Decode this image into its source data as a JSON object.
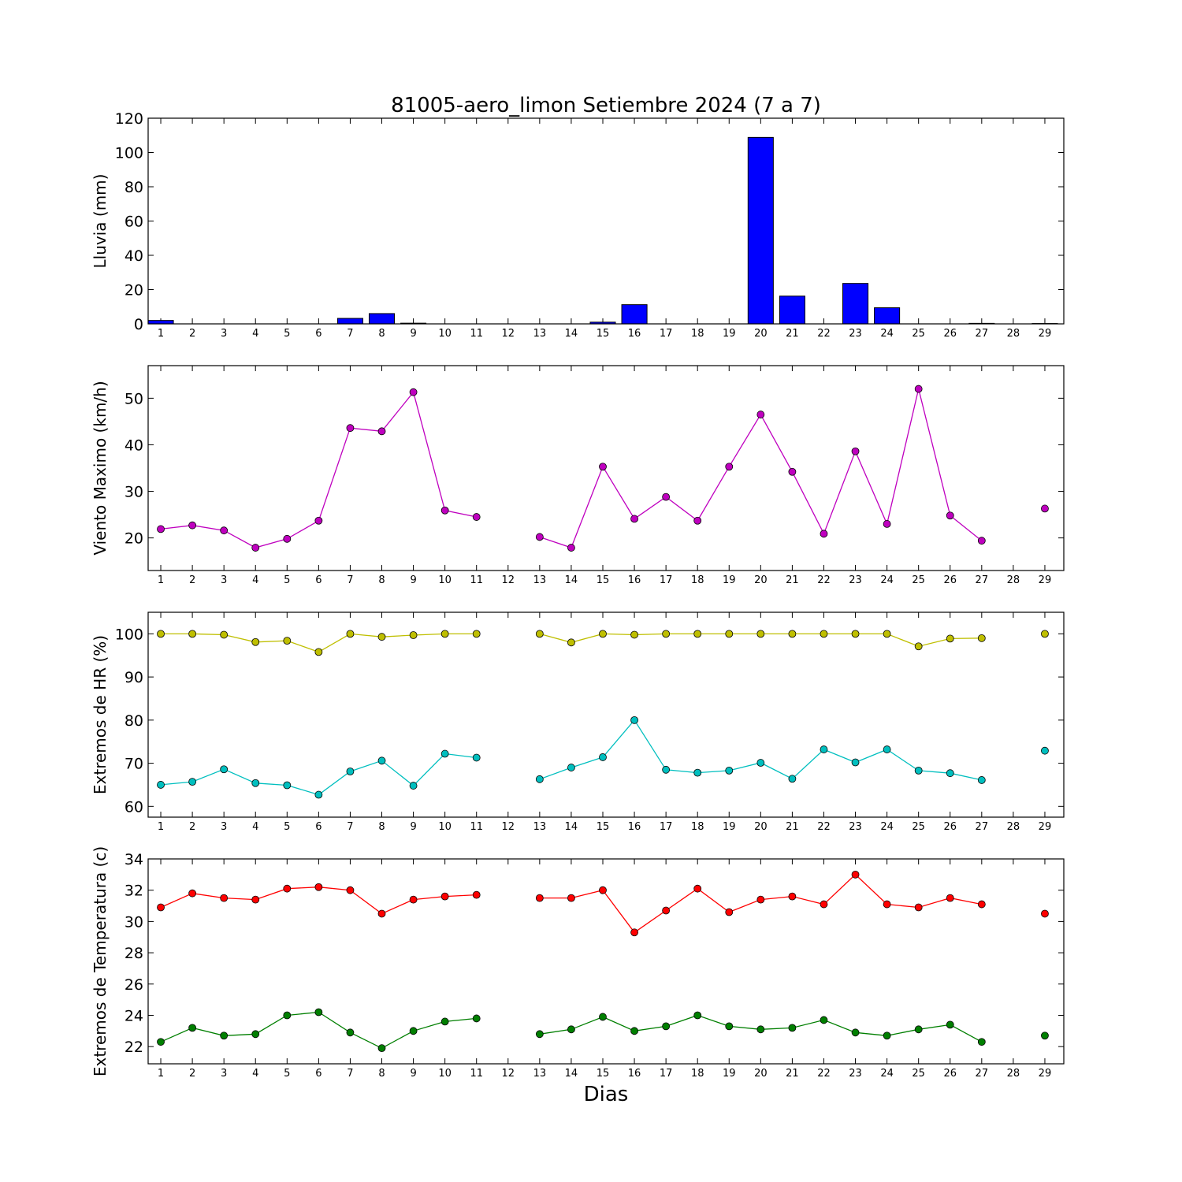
{
  "title": "81005-aero_limon Setiembre 2024  (7 a 7)",
  "xlabel": "Dias",
  "chart_data": [
    {
      "type": "bar",
      "ylabel": "Lluvia (mm)",
      "ylim": [
        0,
        120
      ],
      "yticks": [
        0,
        20,
        40,
        60,
        80,
        100,
        120
      ],
      "x": [
        1,
        2,
        3,
        4,
        5,
        6,
        7,
        8,
        9,
        10,
        11,
        12,
        13,
        14,
        15,
        16,
        17,
        18,
        19,
        20,
        21,
        22,
        23,
        24,
        25,
        26,
        27,
        28,
        29
      ],
      "series": [
        {
          "color": "#0000ff",
          "values": [
            2.0,
            0,
            0,
            0,
            0,
            0,
            3.2,
            6.0,
            0.4,
            0,
            0,
            0,
            0,
            0,
            1.0,
            11.2,
            0,
            0,
            0,
            108.8,
            16.2,
            0,
            23.6,
            9.4,
            0,
            0,
            0.3,
            0,
            0.2
          ]
        }
      ]
    },
    {
      "type": "line",
      "ylabel": "Viento Maximo (km/h)",
      "ylim": [
        13,
        57
      ],
      "yticks": [
        20,
        30,
        40,
        50
      ],
      "x": [
        1,
        2,
        3,
        4,
        5,
        6,
        7,
        8,
        9,
        10,
        11,
        12,
        13,
        14,
        15,
        16,
        17,
        18,
        19,
        20,
        21,
        22,
        23,
        24,
        25,
        26,
        27,
        28,
        29
      ],
      "series": [
        {
          "color": "#bf00bf",
          "values": [
            21.9,
            22.7,
            21.6,
            17.9,
            19.8,
            23.7,
            43.6,
            42.9,
            51.3,
            25.9,
            24.5,
            null,
            20.2,
            17.9,
            35.3,
            24.1,
            28.8,
            23.7,
            35.3,
            46.5,
            34.2,
            20.9,
            38.6,
            23.0,
            52.0,
            24.8,
            19.4,
            null,
            26.3
          ]
        }
      ]
    },
    {
      "type": "line",
      "ylabel": "Extremos de HR (%)",
      "ylim": [
        57.5,
        105
      ],
      "yticks": [
        60,
        70,
        80,
        90,
        100
      ],
      "x": [
        1,
        2,
        3,
        4,
        5,
        6,
        7,
        8,
        9,
        10,
        11,
        12,
        13,
        14,
        15,
        16,
        17,
        18,
        19,
        20,
        21,
        22,
        23,
        24,
        25,
        26,
        27,
        28,
        29
      ],
      "series": [
        {
          "color": "#bfbf00",
          "values": [
            100,
            100,
            99.8,
            98.1,
            98.4,
            95.8,
            100,
            99.3,
            99.7,
            100,
            100,
            null,
            100,
            98.0,
            100,
            99.8,
            100,
            100,
            100,
            100,
            100,
            100,
            100,
            100,
            97.1,
            98.9,
            99.0,
            null,
            100
          ]
        },
        {
          "color": "#00bfbf",
          "values": [
            65.0,
            65.7,
            68.6,
            65.4,
            64.9,
            62.7,
            68.1,
            70.6,
            64.8,
            72.2,
            71.3,
            null,
            66.3,
            69.0,
            71.4,
            80.0,
            68.5,
            67.8,
            68.3,
            70.1,
            66.4,
            73.2,
            70.2,
            73.2,
            68.3,
            67.7,
            66.1,
            null,
            72.9
          ]
        }
      ]
    },
    {
      "type": "line",
      "ylabel": "Extremos de Temperatura (c)",
      "ylim": [
        20.9,
        34
      ],
      "yticks": [
        22,
        24,
        26,
        28,
        30,
        32,
        34
      ],
      "x": [
        1,
        2,
        3,
        4,
        5,
        6,
        7,
        8,
        9,
        10,
        11,
        12,
        13,
        14,
        15,
        16,
        17,
        18,
        19,
        20,
        21,
        22,
        23,
        24,
        25,
        26,
        27,
        28,
        29
      ],
      "series": [
        {
          "color": "#ff0000",
          "values": [
            30.9,
            31.8,
            31.5,
            31.4,
            32.1,
            32.2,
            32.0,
            30.5,
            31.4,
            31.6,
            31.7,
            null,
            31.5,
            31.5,
            32.0,
            29.3,
            30.7,
            32.1,
            30.6,
            31.4,
            31.6,
            31.1,
            33.0,
            31.1,
            30.9,
            31.5,
            31.1,
            null,
            30.5
          ]
        },
        {
          "color": "#007f00",
          "values": [
            22.3,
            23.2,
            22.7,
            22.8,
            24.0,
            24.2,
            22.9,
            21.9,
            23.0,
            23.6,
            23.8,
            null,
            22.8,
            23.1,
            23.9,
            23.0,
            23.3,
            24.0,
            23.3,
            23.1,
            23.2,
            23.7,
            22.9,
            22.7,
            23.1,
            23.4,
            22.3,
            null,
            22.7
          ]
        }
      ]
    }
  ]
}
